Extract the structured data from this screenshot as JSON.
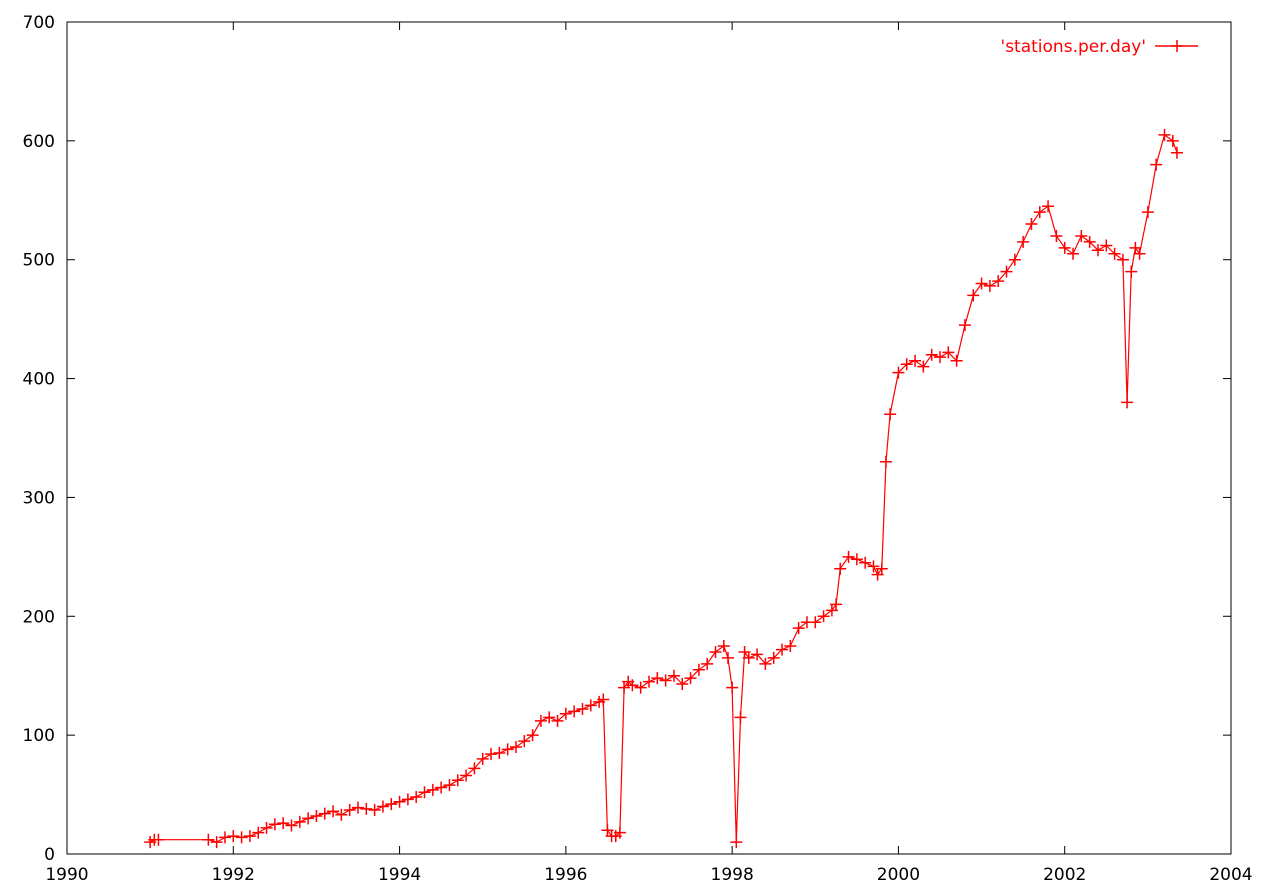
{
  "chart_data": {
    "type": "line",
    "title": "",
    "xlabel": "",
    "ylabel": "",
    "xlim": [
      1990,
      2004
    ],
    "ylim": [
      0,
      700
    ],
    "x_ticks": [
      "1990",
      "1992",
      "1994",
      "1996",
      "1998",
      "2000",
      "2002",
      "2004"
    ],
    "y_ticks": [
      "0",
      "100",
      "200",
      "300",
      "400",
      "500",
      "600",
      "700"
    ],
    "grid": false,
    "legend_position": "top-right",
    "point_marker": "plus",
    "series": [
      {
        "name": "'stations.per.day'",
        "color": "#ff0000",
        "x": [
          1991.0,
          1991.05,
          1991.1,
          1991.7,
          1991.8,
          1991.9,
          1992.0,
          1992.1,
          1992.2,
          1992.3,
          1992.4,
          1992.5,
          1992.6,
          1992.7,
          1992.8,
          1992.9,
          1993.0,
          1993.1,
          1993.2,
          1993.3,
          1993.4,
          1993.5,
          1993.6,
          1993.7,
          1993.8,
          1993.9,
          1994.0,
          1994.1,
          1994.2,
          1994.3,
          1994.4,
          1994.5,
          1994.6,
          1994.7,
          1994.8,
          1994.9,
          1995.0,
          1995.1,
          1995.2,
          1995.3,
          1995.4,
          1995.5,
          1995.6,
          1995.7,
          1995.8,
          1995.9,
          1996.0,
          1996.1,
          1996.2,
          1996.3,
          1996.4,
          1996.45,
          1996.5,
          1996.55,
          1996.6,
          1996.65,
          1996.7,
          1996.75,
          1996.8,
          1996.9,
          1997.0,
          1997.1,
          1997.2,
          1997.3,
          1997.4,
          1997.5,
          1997.6,
          1997.7,
          1997.8,
          1997.9,
          1997.95,
          1998.0,
          1998.05,
          1998.1,
          1998.15,
          1998.2,
          1998.3,
          1998.4,
          1998.5,
          1998.6,
          1998.7,
          1998.8,
          1998.9,
          1999.0,
          1999.1,
          1999.2,
          1999.25,
          1999.3,
          1999.4,
          1999.5,
          1999.6,
          1999.7,
          1999.75,
          1999.8,
          1999.85,
          1999.9,
          2000.0,
          2000.1,
          2000.2,
          2000.3,
          2000.4,
          2000.5,
          2000.6,
          2000.7,
          2000.8,
          2000.9,
          2001.0,
          2001.1,
          2001.2,
          2001.3,
          2001.4,
          2001.5,
          2001.6,
          2001.7,
          2001.8,
          2001.9,
          2002.0,
          2002.1,
          2002.2,
          2002.3,
          2002.4,
          2002.5,
          2002.6,
          2002.7,
          2002.75,
          2002.8,
          2002.85,
          2002.9,
          2003.0,
          2003.1,
          2003.2,
          2003.3,
          2003.35
        ],
        "y": [
          10,
          12,
          12,
          12,
          10,
          14,
          15,
          14,
          15,
          18,
          22,
          25,
          26,
          24,
          27,
          30,
          32,
          34,
          36,
          33,
          37,
          39,
          38,
          37,
          40,
          42,
          44,
          46,
          48,
          52,
          54,
          56,
          58,
          62,
          66,
          72,
          80,
          84,
          85,
          88,
          90,
          95,
          100,
          112,
          115,
          112,
          118,
          120,
          122,
          125,
          128,
          130,
          20,
          15,
          15,
          18,
          140,
          145,
          142,
          140,
          145,
          148,
          146,
          150,
          143,
          148,
          155,
          160,
          170,
          175,
          165,
          140,
          10,
          115,
          170,
          165,
          168,
          160,
          165,
          172,
          175,
          190,
          195,
          195,
          200,
          205,
          210,
          240,
          250,
          248,
          245,
          242,
          235,
          240,
          330,
          370,
          405,
          412,
          415,
          410,
          420,
          418,
          422,
          415,
          445,
          470,
          480,
          478,
          482,
          490,
          500,
          515,
          530,
          540,
          545,
          520,
          510,
          505,
          520,
          515,
          508,
          512,
          505,
          500,
          380,
          490,
          510,
          505,
          540,
          580,
          605,
          600,
          590
        ]
      }
    ]
  }
}
